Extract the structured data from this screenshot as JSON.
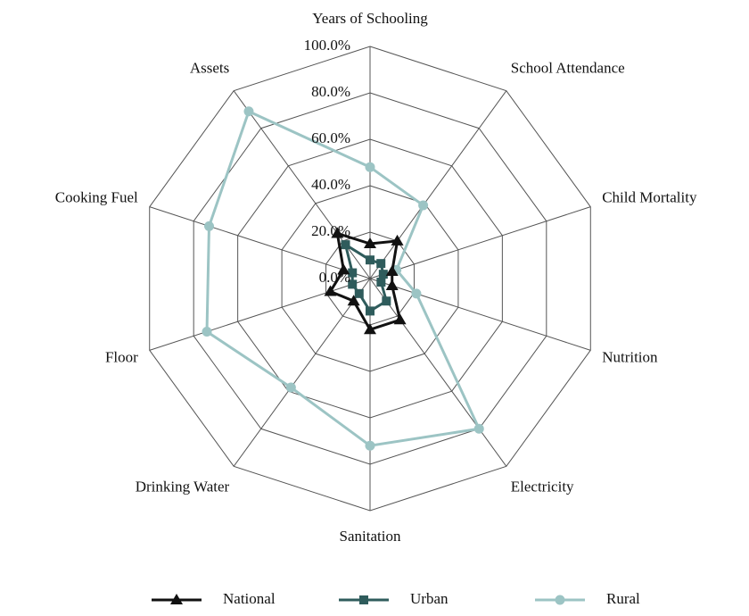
{
  "chart_data": {
    "type": "radar",
    "categories": [
      "Years of Schooling",
      "School Attendance",
      "Child Mortality",
      "Nutrition",
      "Electricity",
      "Sanitation",
      "Drinking Water",
      "Floor",
      "Cooking Fuel",
      "Assets"
    ],
    "series": [
      {
        "name": "National",
        "color": "#111111",
        "marker": "triangle",
        "values": [
          15,
          20,
          10,
          10,
          22,
          22,
          12,
          18,
          12,
          24
        ]
      },
      {
        "name": "Urban",
        "color": "#2f5c5c",
        "marker": "square",
        "values": [
          8,
          8,
          6,
          5,
          12,
          14,
          8,
          8,
          8,
          18
        ]
      },
      {
        "name": "Rural",
        "color": "#9cc4c4",
        "marker": "circle",
        "values": [
          48,
          39,
          12,
          21,
          80,
          72,
          58,
          74,
          73,
          89
        ]
      }
    ],
    "ylim": [
      0,
      100
    ],
    "yticks": [
      {
        "value": 0,
        "label": "0.0%"
      },
      {
        "value": 20,
        "label": "20.0%"
      },
      {
        "value": 40,
        "label": "40.0%"
      },
      {
        "value": 60,
        "label": "60.0%"
      },
      {
        "value": 80,
        "label": "80.0%"
      },
      {
        "value": 100,
        "label": "100.0%"
      }
    ],
    "grid": true,
    "legend": "bottom"
  }
}
